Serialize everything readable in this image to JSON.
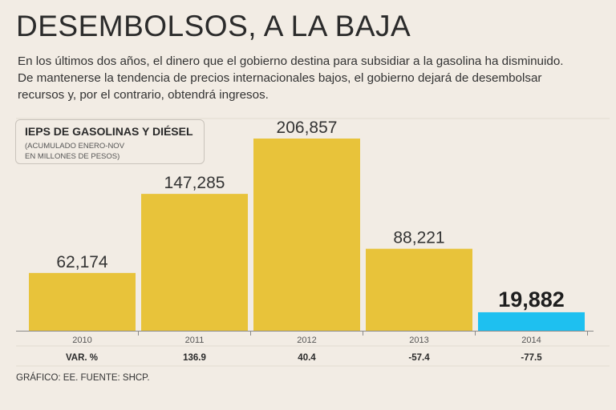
{
  "title": "DESEMBOLSOS, A LA BAJA",
  "description": [
    "En los últimos dos años, el dinero que el gobierno destina para subsidiar a la gasolina ha disminuido.",
    "De mantenerse la tendencia de precios internacionales bajos, el gobierno dejará de desembolsar",
    "recursos y, por el contrario, obtendrá ingresos."
  ],
  "legend": {
    "title": "IEPS DE GASOLINAS Y DIÉSEL",
    "subtitle_line1": "(ACUMULADO ENERO-NOV",
    "subtitle_line2": "EN MILLONES DE PESOS)"
  },
  "chart_data": {
    "type": "bar",
    "title": "IEPS DE GASOLINAS Y DIÉSEL",
    "subtitle": "(ACUMULADO ENERO-NOV EN MILLONES DE PESOS)",
    "categories": [
      "2010",
      "2011",
      "2012",
      "2013",
      "2014"
    ],
    "values": [
      62174,
      147285,
      206857,
      88221,
      19882
    ],
    "value_labels": [
      "62,174",
      "147,285",
      "206,857",
      "88,221",
      "19,882"
    ],
    "ylim": [
      0,
      206857
    ],
    "colors": [
      "#e8c33a",
      "#e8c33a",
      "#e8c33a",
      "#e8c33a",
      "#1ec0f0"
    ],
    "var_label": "VAR. %",
    "var_values": [
      "",
      "136.9",
      "40.4",
      "-57.4",
      "-77.5"
    ],
    "highlight_index": 4
  },
  "footer": "GRÁFICO: EE. FUENTE: SHCP."
}
